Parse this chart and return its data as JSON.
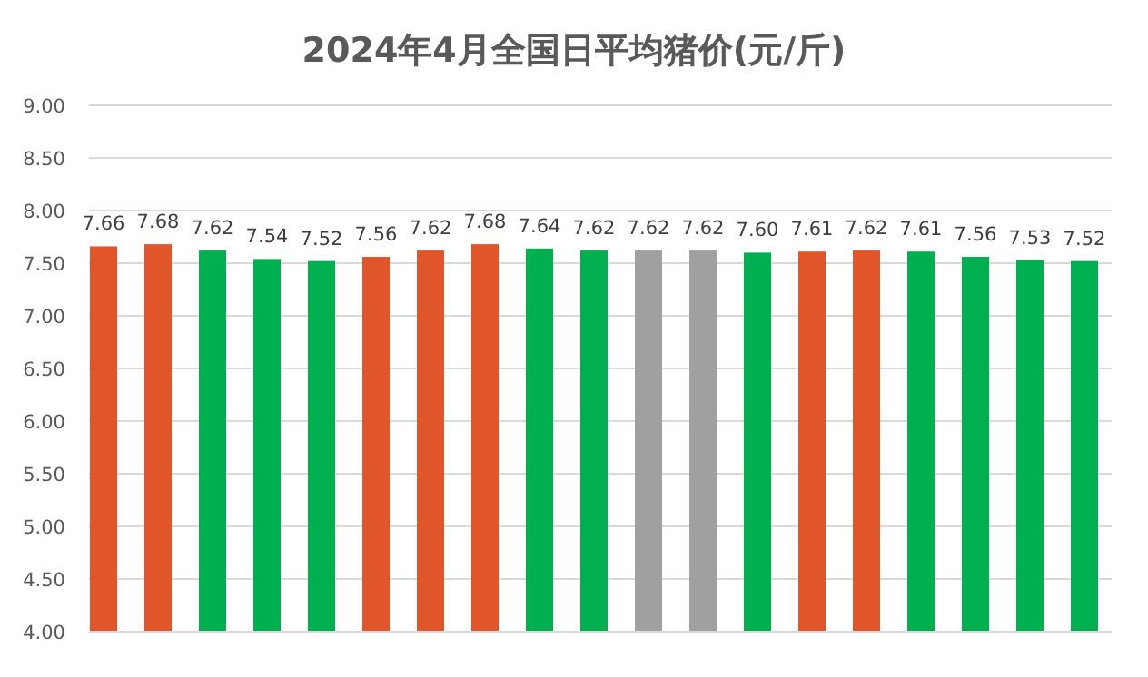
{
  "chart_data": {
    "type": "bar",
    "title": "2024年4月全国日平均猪价(元/斤)",
    "categories": [
      null,
      null,
      null,
      null,
      null,
      null,
      null,
      null,
      null,
      null,
      null,
      null,
      null,
      null,
      null,
      null,
      null,
      null,
      null
    ],
    "values": [
      7.66,
      7.68,
      7.62,
      7.54,
      7.52,
      7.56,
      7.62,
      7.68,
      7.64,
      7.62,
      7.62,
      7.62,
      7.6,
      7.61,
      7.62,
      7.61,
      7.56,
      7.53,
      7.52
    ],
    "value_labels": [
      "7.66",
      "7.68",
      "7.62",
      "7.54",
      "7.52",
      "7.56",
      "7.62",
      "7.68",
      "7.64",
      "7.62",
      "7.62",
      "7.62",
      "7.60",
      "7.61",
      "7.62",
      "7.61",
      "7.56",
      "7.53",
      "7.52"
    ],
    "colors": [
      "#e0562a",
      "#e0562a",
      "#00b050",
      "#00b050",
      "#00b050",
      "#e0562a",
      "#e0562a",
      "#e0562a",
      "#00b050",
      "#00b050",
      "#a0a0a0",
      "#a0a0a0",
      "#00b050",
      "#e0562a",
      "#e0562a",
      "#00b050",
      "#00b050",
      "#00b050",
      "#00b050"
    ],
    "ylim": [
      4,
      9
    ],
    "yticks": [
      {
        "value": 4,
        "label": "4.00"
      },
      {
        "value": 4.5,
        "label": "4.50"
      },
      {
        "value": 5,
        "label": "5.00"
      },
      {
        "value": 5.5,
        "label": "5.50"
      },
      {
        "value": 6,
        "label": "6.00"
      },
      {
        "value": 6.5,
        "label": "6.50"
      },
      {
        "value": 7,
        "label": "7.00"
      },
      {
        "value": 7.5,
        "label": "7.50"
      },
      {
        "value": 8,
        "label": "8.00"
      },
      {
        "value": 8.5,
        "label": "8.50"
      },
      {
        "value": 9,
        "label": "9.00"
      }
    ],
    "grid": "y"
  }
}
